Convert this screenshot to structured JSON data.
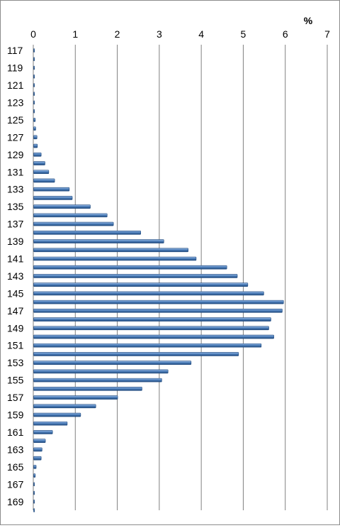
{
  "chart_data": {
    "type": "bar",
    "orientation": "horizontal",
    "unit_label": "%",
    "xlim": [
      0,
      7
    ],
    "x_ticks": [
      0,
      1,
      2,
      3,
      4,
      5,
      6,
      7
    ],
    "y_tick_labels": [
      "117",
      "119",
      "121",
      "123",
      "125",
      "127",
      "129",
      "131",
      "133",
      "135",
      "137",
      "139",
      "141",
      "143",
      "145",
      "147",
      "149",
      "151",
      "153",
      "155",
      "157",
      "159",
      "161",
      "163",
      "165",
      "167",
      "169"
    ],
    "categories": [
      117,
      118,
      119,
      120,
      121,
      122,
      123,
      124,
      125,
      126,
      127,
      128,
      129,
      130,
      131,
      132,
      133,
      134,
      135,
      136,
      137,
      138,
      139,
      140,
      141,
      142,
      143,
      144,
      145,
      146,
      147,
      148,
      149,
      150,
      151,
      152,
      153,
      154,
      155,
      156,
      157,
      158,
      159,
      160,
      161,
      162,
      163,
      164,
      165,
      166,
      167,
      168,
      169,
      170
    ],
    "values": [
      0.01,
      0.0,
      0.0,
      0.0,
      0.0,
      0.0,
      0.0,
      0.02,
      0.04,
      0.05,
      0.08,
      0.09,
      0.18,
      0.27,
      0.36,
      0.5,
      0.85,
      0.92,
      1.35,
      1.75,
      1.9,
      2.55,
      3.1,
      3.68,
      3.87,
      4.6,
      4.85,
      5.1,
      5.48,
      5.95,
      5.92,
      5.65,
      5.6,
      5.72,
      5.42,
      4.88,
      3.75,
      3.2,
      3.05,
      2.58,
      2.0,
      1.48,
      1.12,
      0.8,
      0.45,
      0.28,
      0.2,
      0.18,
      0.06,
      0.04,
      0.01,
      0.01,
      0.0,
      0.02
    ],
    "grid": true,
    "bar_color": "#4f81bd",
    "bar_dark": "#1f497d",
    "grid_color": "#808080"
  }
}
